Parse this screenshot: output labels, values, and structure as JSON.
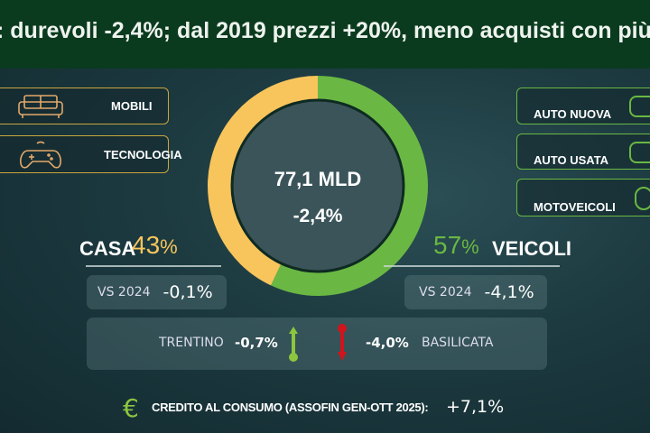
{
  "header": {
    "title": ": durevoli -2,4%; dal 2019 prezzi +20%, meno acquisti con più"
  },
  "left_categories": [
    {
      "label": "MOBILI",
      "icon": "sofa-icon"
    },
    {
      "label": "TECNOLOGIA",
      "icon": "gamepad-icon"
    }
  ],
  "right_categories": [
    {
      "label": "AUTO NUOVA",
      "icon": "car-icon"
    },
    {
      "label": "AUTO USATA",
      "icon": "car-icon"
    },
    {
      "label": "MOTOVEICOLI",
      "icon": "motorbike-icon"
    }
  ],
  "center": {
    "total": "77,1 MLD",
    "change": "-2,4%"
  },
  "casa": {
    "label": "CASA",
    "pct": "43",
    "pct_sign": "%",
    "vs_label": "VS 2024",
    "vs_value": "-0,1%"
  },
  "veicoli": {
    "label": "VEICOLI",
    "pct": "57",
    "pct_sign": "%",
    "vs_label": "VS 2024",
    "vs_value": "-4,1%"
  },
  "regions": {
    "best_name": "TRENTINO",
    "best_value": "-0,7%",
    "worst_value": "-4,0%",
    "worst_name": "BASILICATA"
  },
  "credit": {
    "label": "CREDITO AL CONSUMO (ASSOFIN GEN-OTT 2025):",
    "value": "+7,1%",
    "icon": "euro-icon"
  },
  "colors": {
    "casa": "#f8c55c",
    "veicoli": "#6ab843",
    "header": "#0b3b1f",
    "up": "#8cc63f",
    "down": "#d0141c"
  },
  "chart_data": {
    "type": "pie",
    "donut": true,
    "categories": [
      "CASA",
      "VEICOLI"
    ],
    "values": [
      43,
      57
    ],
    "colors": [
      "#f8c55c",
      "#6ab843"
    ]
  }
}
